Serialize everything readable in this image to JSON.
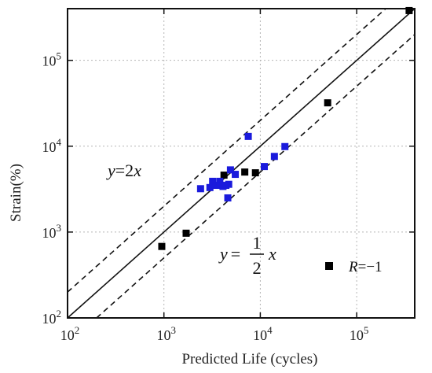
{
  "chart_data": {
    "type": "scatter",
    "title": "",
    "xlabel": "Predicted Life (cycles)",
    "ylabel": "Strain(%)",
    "xscale": "log",
    "yscale": "log",
    "xlim": [
      100,
      400000
    ],
    "ylim": [
      100,
      400000
    ],
    "grid": true,
    "x_ticks": [
      100,
      1000,
      10000,
      100000
    ],
    "y_ticks": [
      100,
      1000,
      10000,
      100000
    ],
    "x_tick_labels": [
      {
        "base": "10",
        "exp": "2"
      },
      {
        "base": "10",
        "exp": "3"
      },
      {
        "base": "10",
        "exp": "4"
      },
      {
        "base": "10",
        "exp": "5"
      }
    ],
    "y_tick_labels": [
      {
        "base": "10",
        "exp": "2"
      },
      {
        "base": "10",
        "exp": "3"
      },
      {
        "base": "10",
        "exp": "4"
      },
      {
        "base": "10",
        "exp": "5"
      }
    ],
    "reference_lines": [
      {
        "type": "solid",
        "factor": 1
      },
      {
        "type": "dashed",
        "factor": 2
      },
      {
        "type": "dashed",
        "factor": 0.5
      }
    ],
    "annotations": {
      "upper": {
        "y": "y",
        "eq": "=2",
        "x": "x"
      },
      "lower": {
        "y": "y",
        "eq": "=",
        "num": "1",
        "den": "2",
        "x": "x"
      }
    },
    "legend": {
      "position": "bottom-right",
      "label_R": "R",
      "label_val": "=−1",
      "color": "#000000"
    },
    "series": [
      {
        "name": "",
        "color": "#000000",
        "points": [
          [
            950,
            680
          ],
          [
            1700,
            970
          ],
          [
            4200,
            4600
          ],
          [
            6900,
            5000
          ],
          [
            8900,
            4900
          ],
          [
            50000,
            32000
          ],
          [
            350000,
            380000
          ]
        ]
      },
      {
        "name": "",
        "color": "#1a1adc",
        "points": [
          [
            2400,
            3200
          ],
          [
            3000,
            3300
          ],
          [
            3200,
            3900
          ],
          [
            3500,
            3500
          ],
          [
            3800,
            3900
          ],
          [
            4100,
            3400
          ],
          [
            4400,
            3500
          ],
          [
            4600,
            2500
          ],
          [
            4700,
            3600
          ],
          [
            4900,
            5300
          ],
          [
            5500,
            4700
          ],
          [
            7500,
            13000
          ],
          [
            11000,
            5800
          ],
          [
            14000,
            7600
          ],
          [
            18000,
            9900
          ]
        ]
      }
    ]
  }
}
